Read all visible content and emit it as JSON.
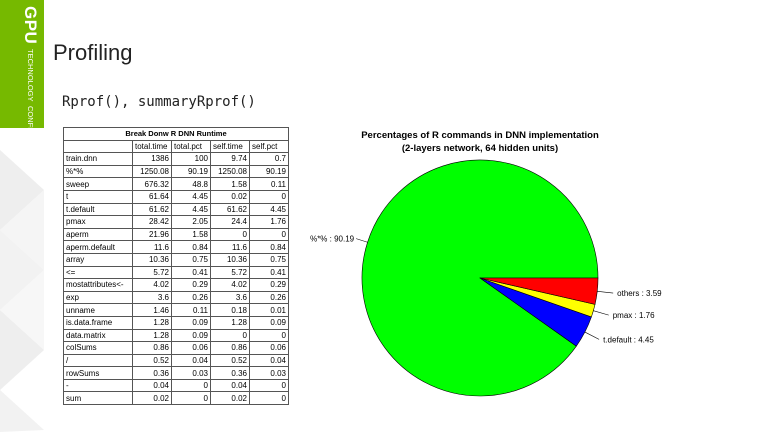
{
  "brand": {
    "line1": "GPU",
    "line2": "TECHNOLOGY",
    "line3": "CONFERENCE",
    "color": "#76b900"
  },
  "slide": {
    "title": "Profiling",
    "subtitle": "Rprof(), summaryRprof()"
  },
  "table": {
    "caption": "Break Donw R DNN Runtime",
    "columns": [
      "",
      "total.time",
      "total.pct",
      "self.time",
      "self.pct"
    ],
    "rows": [
      [
        "train.dnn",
        "1386",
        "100",
        "9.74",
        "0.7"
      ],
      [
        "%*%",
        "1250.08",
        "90.19",
        "1250.08",
        "90.19"
      ],
      [
        "sweep",
        "676.32",
        "48.8",
        "1.58",
        "0.11"
      ],
      [
        "t",
        "61.64",
        "4.45",
        "0.02",
        "0"
      ],
      [
        "t.default",
        "61.62",
        "4.45",
        "61.62",
        "4.45"
      ],
      [
        "pmax",
        "28.42",
        "2.05",
        "24.4",
        "1.76"
      ],
      [
        "aperm",
        "21.96",
        "1.58",
        "0",
        "0"
      ],
      [
        "aperm.default",
        "11.6",
        "0.84",
        "11.6",
        "0.84"
      ],
      [
        "array",
        "10.36",
        "0.75",
        "10.36",
        "0.75"
      ],
      [
        "<=",
        "5.72",
        "0.41",
        "5.72",
        "0.41"
      ],
      [
        "mostattributes<-",
        "4.02",
        "0.29",
        "4.02",
        "0.29"
      ],
      [
        "exp",
        "3.6",
        "0.26",
        "3.6",
        "0.26"
      ],
      [
        "unname",
        "1.46",
        "0.11",
        "0.18",
        "0.01"
      ],
      [
        "is.data.frame",
        "1.28",
        "0.09",
        "1.28",
        "0.09"
      ],
      [
        "data.matrix",
        "1.28",
        "0.09",
        "0",
        "0"
      ],
      [
        "colSums",
        "0.86",
        "0.06",
        "0.86",
        "0.06"
      ],
      [
        "/",
        "0.52",
        "0.04",
        "0.52",
        "0.04"
      ],
      [
        "rowSums",
        "0.36",
        "0.03",
        "0.36",
        "0.03"
      ],
      [
        "-",
        "0.04",
        "0",
        "0.04",
        "0"
      ],
      [
        "sum",
        "0.02",
        "0",
        "0.02",
        "0"
      ]
    ]
  },
  "chart_data": {
    "type": "pie",
    "title": "Percentages of R commands in DNN implementation",
    "subtitle": "(2-layers network, 64 hidden units)",
    "slices": [
      {
        "label": "%*% : 90.19",
        "value": 90.19,
        "color": "#00ff00"
      },
      {
        "label": "others : 3.59",
        "value": 3.59,
        "color": "#ff0000"
      },
      {
        "label": "pmax : 1.76",
        "value": 1.76,
        "color": "#ffff00"
      },
      {
        "label": "t.default : 4.45",
        "value": 4.45,
        "color": "#0000ff"
      }
    ]
  }
}
